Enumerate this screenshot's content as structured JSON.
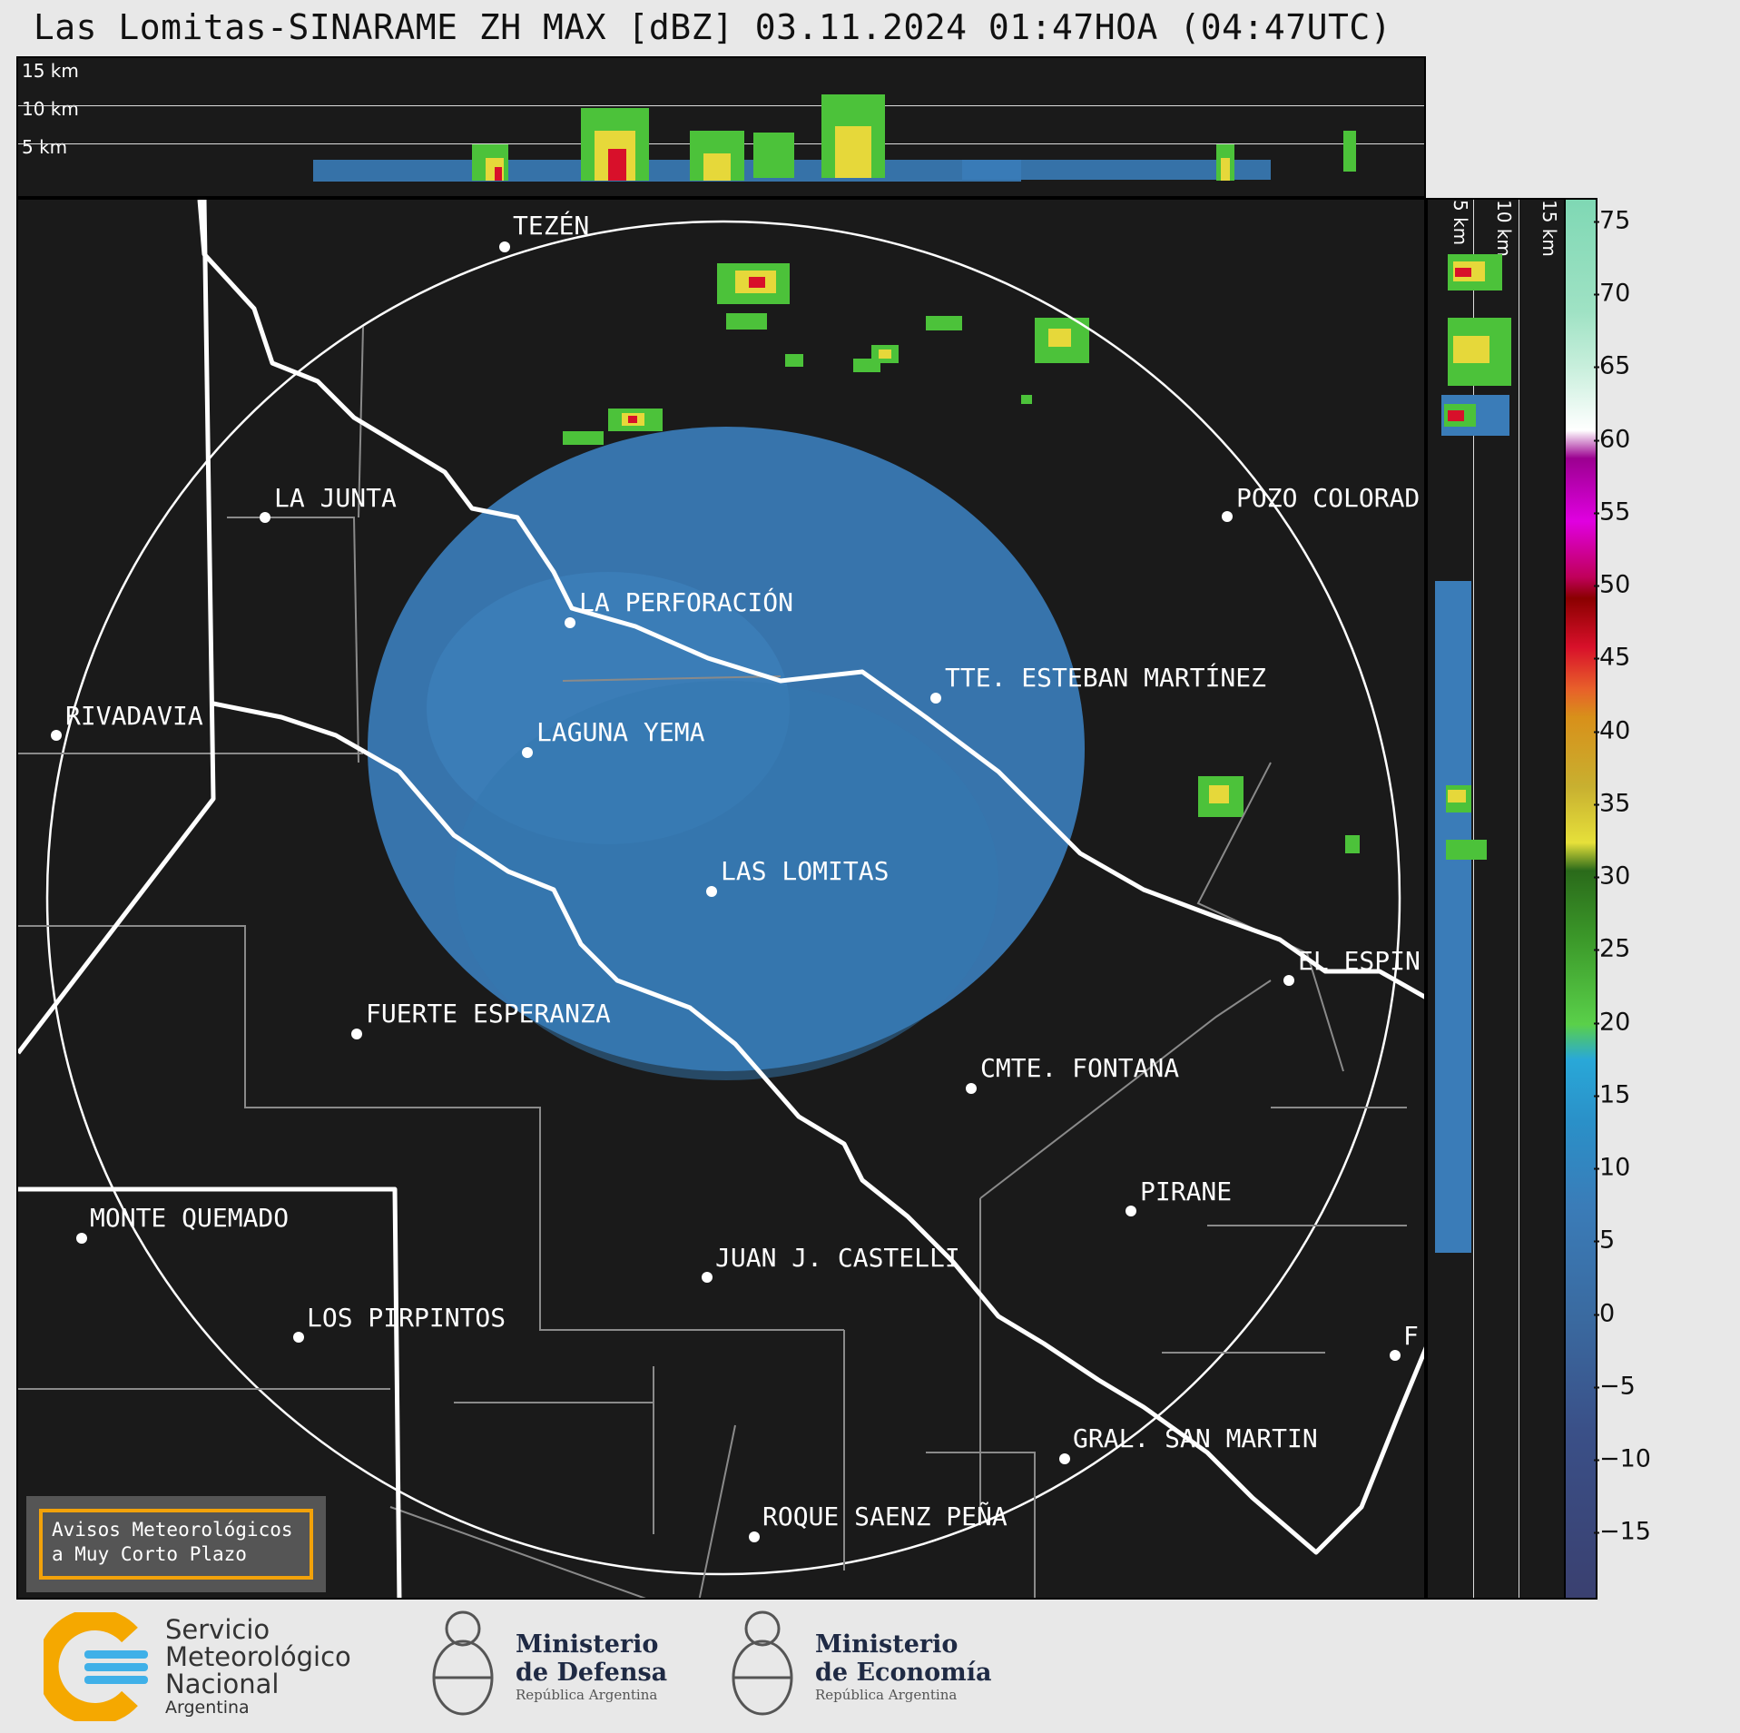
{
  "title": "Las Lomitas-SINARAME ZH MAX [dBZ] 03.11.2024 01:47HOA (04:47UTC)",
  "height_labels": [
    "15 km",
    "10 km",
    "5 km"
  ],
  "side_labels": [
    "5 km",
    "10 km",
    "15 km"
  ],
  "colorbar": {
    "ticks": [
      "75",
      "70",
      "65",
      "60",
      "55",
      "50",
      "45",
      "40",
      "35",
      "30",
      "25",
      "20",
      "15",
      "10",
      "5",
      "0",
      "−5",
      "−10",
      "−15"
    ]
  },
  "places": [
    {
      "name": "TEZÉN"
    },
    {
      "name": "LA JUNTA"
    },
    {
      "name": "POZO COLORAD"
    },
    {
      "name": "LA PERFORACIÓN"
    },
    {
      "name": "TTE. ESTEBAN MARTÍNEZ"
    },
    {
      "name": "RIVADAVIA"
    },
    {
      "name": "LAGUNA YEMA"
    },
    {
      "name": "LAS LOMITAS"
    },
    {
      "name": "EL ESPIN"
    },
    {
      "name": "FUERTE ESPERANZA"
    },
    {
      "name": "CMTE. FONTANA"
    },
    {
      "name": "PIRANE"
    },
    {
      "name": "MONTE QUEMADO"
    },
    {
      "name": "JUAN J. CASTELLI"
    },
    {
      "name": "LOS PIRPINTOS"
    },
    {
      "name": "F"
    },
    {
      "name": "GRAL. SAN MARTIN"
    },
    {
      "name": "ROQUE SAENZ PEÑA"
    }
  ],
  "notice": {
    "line1": "Avisos Meteorológicos",
    "line2": "a Muy Corto Plazo"
  },
  "logos": {
    "smn": {
      "line1": "Servicio",
      "line2": "Meteorológico",
      "line3": "Nacional",
      "line4": "Argentina"
    },
    "defensa": {
      "line1": "Ministerio",
      "line2": "de Defensa",
      "line3": "República Argentina"
    },
    "economia": {
      "line1": "Ministerio",
      "line2": "de Economía",
      "line3": "República Argentina"
    }
  },
  "colors": {
    "background": "#1a1a1a",
    "echo_weak": "#3a7cb8",
    "echo_green": "#4cc23a",
    "echo_yellow": "#e6d83a",
    "echo_red": "#d8102a",
    "notice_border": "#f2a20a"
  }
}
